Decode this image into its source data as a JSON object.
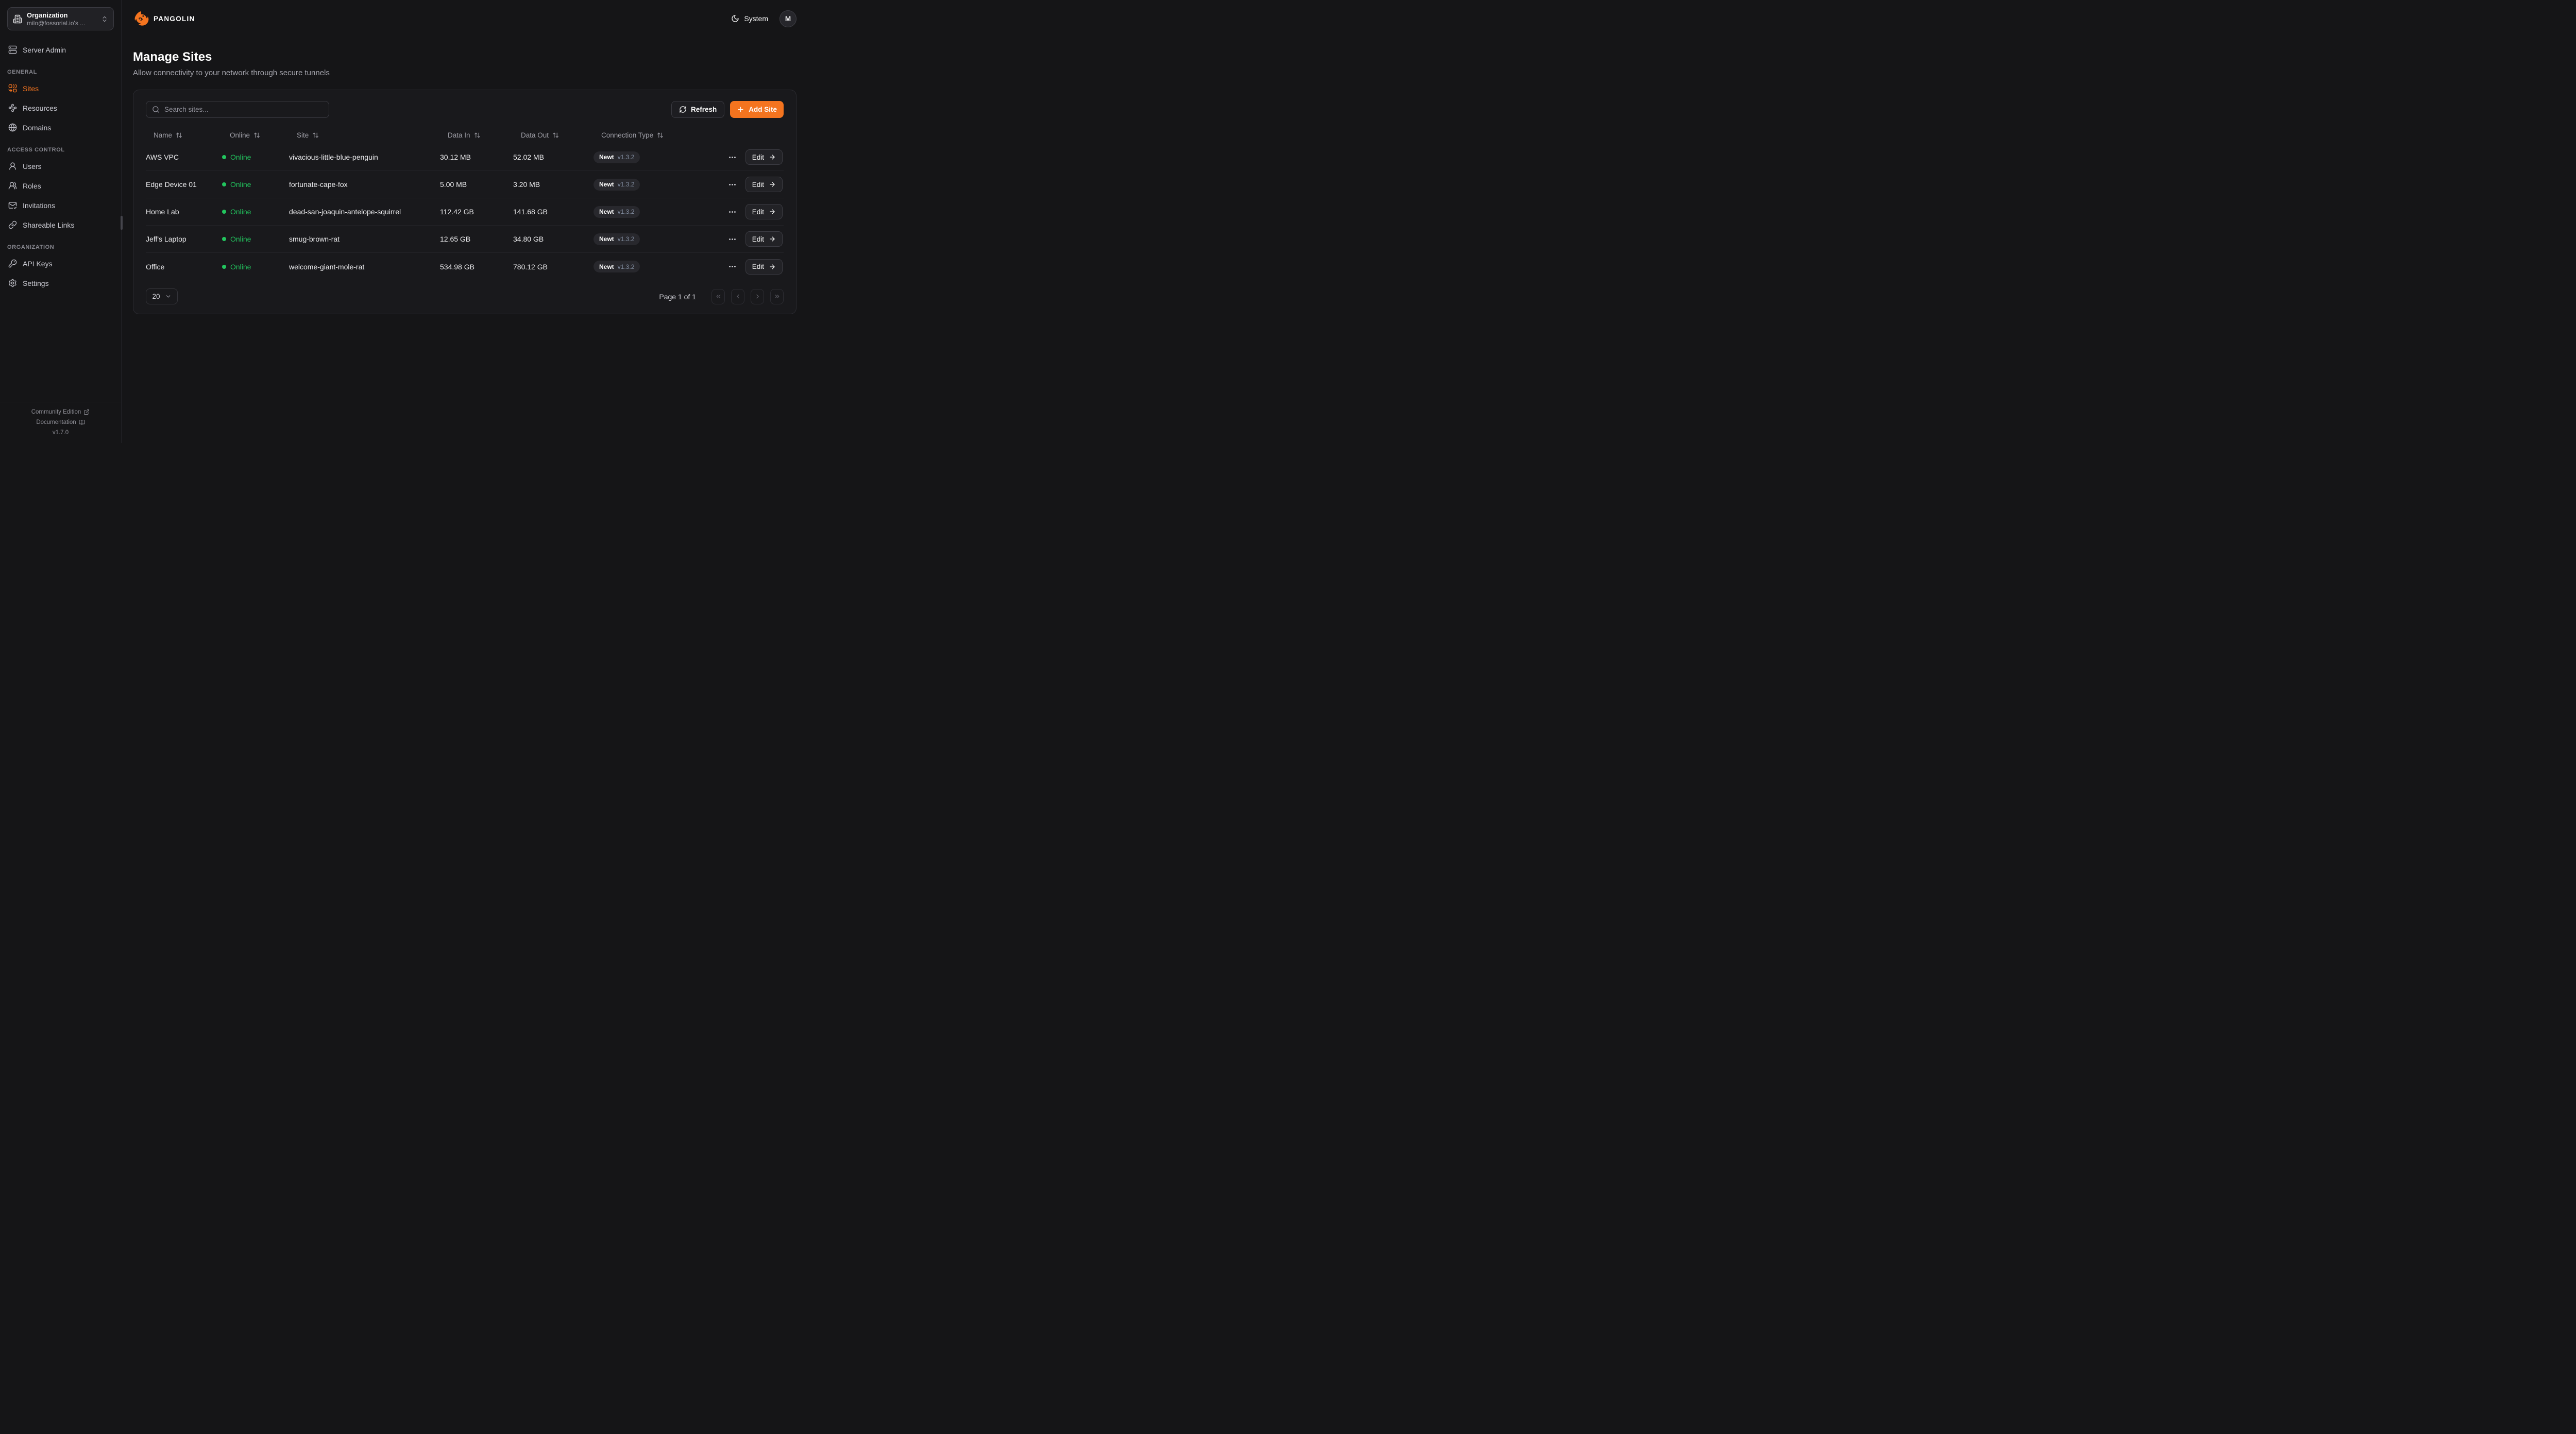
{
  "colors": {
    "accent": "#f4741f",
    "online_green": "#22c55e"
  },
  "org_switcher": {
    "title": "Organization",
    "subtitle": "milo@fossorial.io's ...",
    "icon": "building-icon"
  },
  "topbar": {
    "brand": "PANGOLIN",
    "theme_label": "System",
    "avatar_initial": "M"
  },
  "sidebar": {
    "server_admin": {
      "label": "Server Admin",
      "icon": "server-icon"
    },
    "sections": [
      {
        "label": "GENERAL",
        "items": [
          {
            "label": "Sites",
            "icon": "combine-icon",
            "active": true
          },
          {
            "label": "Resources",
            "icon": "waypoints-icon",
            "active": false
          },
          {
            "label": "Domains",
            "icon": "globe-icon",
            "active": false
          }
        ]
      },
      {
        "label": "ACCESS CONTROL",
        "items": [
          {
            "label": "Users",
            "icon": "user-icon",
            "active": false
          },
          {
            "label": "Roles",
            "icon": "users-icon",
            "active": false
          },
          {
            "label": "Invitations",
            "icon": "mail-check-icon",
            "active": false
          },
          {
            "label": "Shareable Links",
            "icon": "link-icon",
            "active": false
          }
        ]
      },
      {
        "label": "ORGANIZATION",
        "items": [
          {
            "label": "API Keys",
            "icon": "key-icon",
            "active": false
          },
          {
            "label": "Settings",
            "icon": "gear-icon",
            "active": false
          }
        ]
      }
    ],
    "footer": {
      "community_edition": "Community Edition",
      "documentation": "Documentation",
      "version": "v1.7.0"
    }
  },
  "page": {
    "title": "Manage Sites",
    "subtitle": "Allow connectivity to your network through secure tunnels"
  },
  "toolbar": {
    "search_placeholder": "Search sites...",
    "refresh_label": "Refresh",
    "add_site_label": "Add Site"
  },
  "table": {
    "columns": [
      "Name",
      "Online",
      "Site",
      "Data In",
      "Data Out",
      "Connection Type"
    ],
    "edit_label": "Edit",
    "rows": [
      {
        "name": "AWS VPC",
        "status": "Online",
        "site": "vivacious-little-blue-penguin",
        "data_in": "30.12 MB",
        "data_out": "52.02 MB",
        "connection": "Newt",
        "version": "v1.3.2"
      },
      {
        "name": "Edge Device 01",
        "status": "Online",
        "site": "fortunate-cape-fox",
        "data_in": "5.00 MB",
        "data_out": "3.20 MB",
        "connection": "Newt",
        "version": "v1.3.2"
      },
      {
        "name": "Home Lab",
        "status": "Online",
        "site": "dead-san-joaquin-antelope-squirrel",
        "data_in": "112.42 GB",
        "data_out": "141.68 GB",
        "connection": "Newt",
        "version": "v1.3.2"
      },
      {
        "name": "Jeff's Laptop",
        "status": "Online",
        "site": "smug-brown-rat",
        "data_in": "12.65 GB",
        "data_out": "34.80 GB",
        "connection": "Newt",
        "version": "v1.3.2"
      },
      {
        "name": "Office",
        "status": "Online",
        "site": "welcome-giant-mole-rat",
        "data_in": "534.98 GB",
        "data_out": "780.12 GB",
        "connection": "Newt",
        "version": "v1.3.2"
      }
    ]
  },
  "pagination": {
    "rows_per_page": "20",
    "status": "Page 1 of 1"
  }
}
